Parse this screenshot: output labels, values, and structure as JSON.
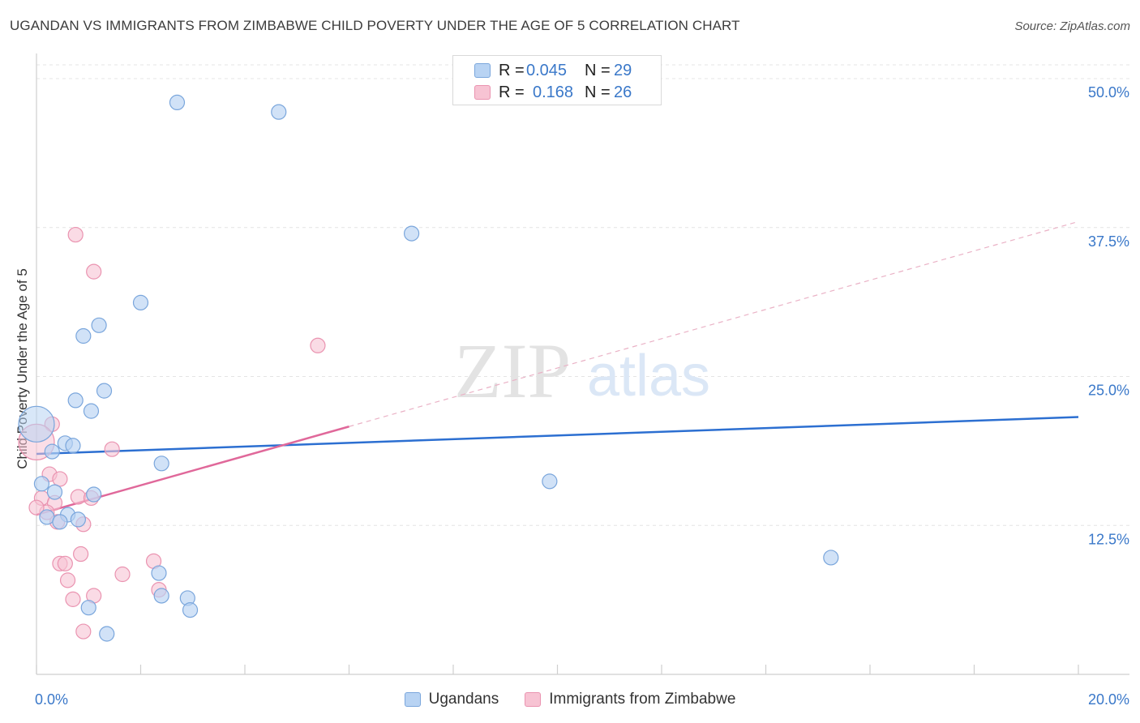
{
  "title": "UGANDAN VS IMMIGRANTS FROM ZIMBABWE CHILD POVERTY UNDER THE AGE OF 5 CORRELATION CHART",
  "source": "Source: ZipAtlas.com",
  "watermark": {
    "zip": "ZIP",
    "atlas": "atlas"
  },
  "colors": {
    "blue_fill": "#b8d3f3",
    "blue_stroke": "#7aa6dc",
    "blue_line": "#2c6fd1",
    "pink_fill": "#f7c3d3",
    "pink_stroke": "#ea93b0",
    "pink_line": "#e0689a",
    "axis_text": "#3a78c9",
    "grid": "#e4e4e4"
  },
  "legend": {
    "rows": [
      {
        "r_label": "R =",
        "r_value": "0.045",
        "n_label": "N =",
        "n_value": "29"
      },
      {
        "r_label": "R =",
        "r_value": "0.168",
        "n_label": "N =",
        "n_value": "26"
      }
    ]
  },
  "bottom_legend": [
    "Ugandans",
    "Immigrants from Zimbabwe"
  ],
  "chart_data": {
    "type": "scatter",
    "title": "UGANDAN VS IMMIGRANTS FROM ZIMBABWE CHILD POVERTY UNDER THE AGE OF 5 CORRELATION CHART",
    "xlabel": "",
    "ylabel": "Child Poverty Under the Age of 5",
    "xlim": [
      0,
      20
    ],
    "ylim": [
      0,
      50
    ],
    "x_tick_labels": [
      "0.0%",
      "20.0%"
    ],
    "y_tick_values": [
      12.5,
      25.0,
      37.5,
      50.0
    ],
    "y_tick_labels": [
      "12.5%",
      "25.0%",
      "37.5%",
      "50.0%"
    ],
    "series": [
      {
        "name": "Ugandans",
        "r": 0.045,
        "n": 29,
        "points": [
          [
            2.7,
            48.0
          ],
          [
            4.65,
            47.2
          ],
          [
            7.2,
            37.0
          ],
          [
            2.0,
            31.2
          ],
          [
            1.2,
            29.3
          ],
          [
            0.9,
            28.4
          ],
          [
            1.3,
            23.8
          ],
          [
            0.75,
            23.0
          ],
          [
            1.05,
            22.1
          ],
          [
            0.0,
            21.0
          ],
          [
            0.55,
            19.4
          ],
          [
            0.7,
            19.2
          ],
          [
            0.3,
            18.7
          ],
          [
            2.4,
            17.7
          ],
          [
            9.85,
            16.2
          ],
          [
            0.1,
            16.0
          ],
          [
            0.35,
            15.3
          ],
          [
            1.1,
            15.1
          ],
          [
            0.6,
            13.4
          ],
          [
            0.8,
            13.0
          ],
          [
            0.2,
            13.2
          ],
          [
            0.45,
            12.8
          ],
          [
            15.25,
            9.8
          ],
          [
            2.35,
            8.5
          ],
          [
            2.4,
            6.6
          ],
          [
            2.9,
            6.4
          ],
          [
            1.0,
            5.6
          ],
          [
            2.95,
            5.4
          ],
          [
            1.35,
            3.4
          ]
        ],
        "trend": {
          "x": [
            0,
            20
          ],
          "y": [
            18.5,
            21.6
          ]
        }
      },
      {
        "name": "Immigrants from Zimbabwe",
        "r": 0.168,
        "n": 26,
        "points": [
          [
            0.75,
            36.9
          ],
          [
            1.1,
            33.8
          ],
          [
            5.4,
            27.6
          ],
          [
            0.3,
            21.0
          ],
          [
            0.0,
            19.5
          ],
          [
            1.45,
            18.9
          ],
          [
            0.25,
            16.8
          ],
          [
            0.45,
            16.4
          ],
          [
            0.1,
            14.8
          ],
          [
            0.35,
            14.4
          ],
          [
            0.8,
            14.9
          ],
          [
            1.05,
            14.8
          ],
          [
            0.2,
            13.6
          ],
          [
            0.4,
            12.8
          ],
          [
            0.9,
            12.6
          ],
          [
            0.85,
            10.1
          ],
          [
            2.25,
            9.5
          ],
          [
            0.45,
            9.3
          ],
          [
            0.55,
            9.3
          ],
          [
            1.65,
            8.4
          ],
          [
            0.6,
            7.9
          ],
          [
            2.35,
            7.1
          ],
          [
            1.1,
            6.6
          ],
          [
            0.7,
            6.3
          ],
          [
            0.9,
            3.6
          ],
          [
            0.0,
            14.0
          ]
        ],
        "trend": {
          "x": [
            0,
            6
          ],
          "y": [
            13.4,
            20.8
          ]
        },
        "trend_extension": {
          "x": [
            6,
            20
          ],
          "y": [
            20.8,
            38.0
          ]
        }
      }
    ]
  }
}
